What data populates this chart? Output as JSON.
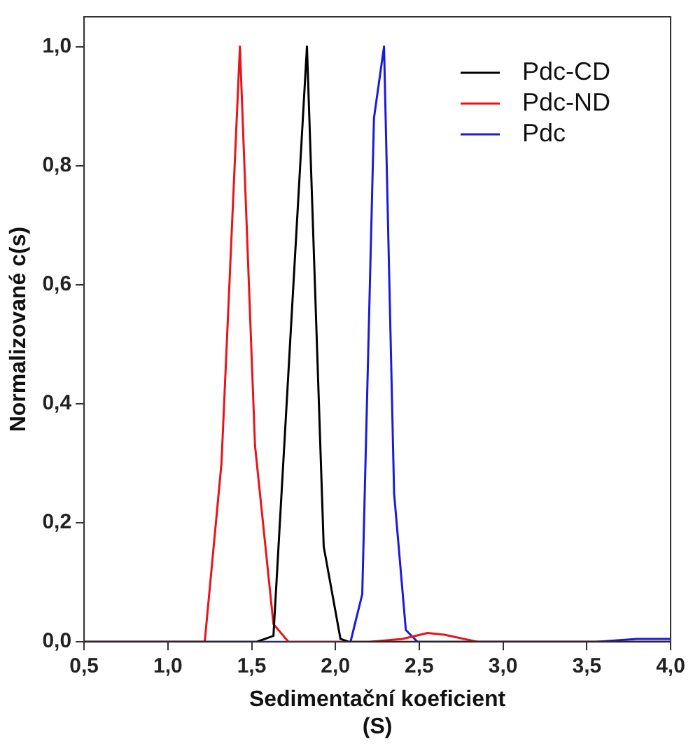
{
  "chart_data": {
    "type": "line",
    "xlabel": "Sedimentační koeficient\n(S)",
    "ylabel": "Normalizované c(s)",
    "xlim": [
      0.5,
      4.0
    ],
    "ylim": [
      0,
      1.05
    ],
    "xticks": [
      {
        "value": 0.5,
        "label": "0,5"
      },
      {
        "value": 1.0,
        "label": "1,0"
      },
      {
        "value": 1.5,
        "label": "1,5"
      },
      {
        "value": 2.0,
        "label": "2,0"
      },
      {
        "value": 2.5,
        "label": "2,5"
      },
      {
        "value": 3.0,
        "label": "3,0"
      },
      {
        "value": 3.5,
        "label": "3,5"
      },
      {
        "value": 4.0,
        "label": "4,0"
      }
    ],
    "yticks": [
      {
        "value": 0,
        "label": "0,0"
      },
      {
        "value": 0.2,
        "label": "0,2"
      },
      {
        "value": 0.4,
        "label": "0,4"
      },
      {
        "value": 0.6,
        "label": "0,6"
      },
      {
        "value": 0.8,
        "label": "0,8"
      },
      {
        "value": 1.0,
        "label": "1,0"
      }
    ],
    "grid": false,
    "legend": "top right",
    "marker": "none",
    "line_style": "solid",
    "series": [
      {
        "name": "Pdc-CD",
        "color": "#000000",
        "x": [
          0.5,
          1.45,
          1.53,
          1.63,
          1.83,
          1.93,
          2.03,
          2.08,
          4.0
        ],
        "values": [
          0,
          0,
          0,
          0.01,
          1.0,
          0.16,
          0.005,
          0,
          0
        ]
      },
      {
        "name": "Pdc-ND",
        "color": "#e8141a",
        "x": [
          0.5,
          1.15,
          1.22,
          1.32,
          1.43,
          1.52,
          1.63,
          1.72,
          2.2,
          2.4,
          2.55,
          2.65,
          2.85,
          4.0
        ],
        "values": [
          0,
          0,
          0,
          0.3,
          1.0,
          0.33,
          0.03,
          0,
          0,
          0.005,
          0.015,
          0.012,
          0,
          0
        ]
      },
      {
        "name": "Pdc",
        "color": "#1a1adc",
        "x": [
          0.5,
          2.09,
          2.16,
          2.23,
          2.29,
          2.35,
          2.42,
          2.49,
          3.55,
          3.8,
          4.0
        ],
        "values": [
          0,
          0,
          0.08,
          0.88,
          1.0,
          0.25,
          0.02,
          0,
          0,
          0.005,
          0.005
        ]
      }
    ]
  }
}
